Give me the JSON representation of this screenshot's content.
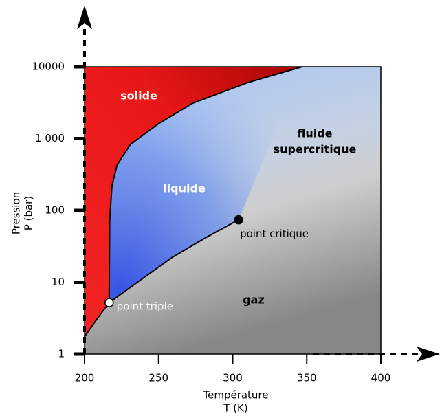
{
  "chart_data": {
    "type": "phase",
    "x_label": [
      "Température",
      "T (K)"
    ],
    "y_label": [
      "Pression",
      "P (bar)"
    ],
    "xlim": [
      200,
      400
    ],
    "xticks": [
      200,
      250,
      300,
      350,
      400
    ],
    "ylim": [
      1,
      10000
    ],
    "log_y": true,
    "yticks": [
      1,
      10,
      100,
      {
        "value": 1000,
        "label": "1 000"
      },
      10000
    ],
    "regions": [
      {
        "label": [
          "solide"
        ],
        "color": "#ffffff"
      },
      {
        "label": [
          "liquide"
        ],
        "color": "#ffffff"
      },
      {
        "label": [
          "fluide",
          "supercritique"
        ],
        "color": "#000000"
      },
      {
        "label": [
          "gaz"
        ],
        "color": "#000000"
      }
    ],
    "curves": [
      {
        "T": [
          200,
          207,
          216.6
        ],
        "P": [
          1.74,
          2.8,
          5.2
        ]
      },
      {
        "T": [
          216.6,
          216.8,
          217,
          218.5,
          222,
          231,
          249.7,
          272.9,
          310,
          347
        ],
        "P": [
          5.2,
          20,
          73,
          220,
          430,
          830,
          1600,
          3100,
          6000,
          10000
        ]
      },
      {
        "T": [
          216.6,
          235.7,
          258.9,
          282,
          304
        ],
        "P": [
          5.2,
          10,
          22,
          42,
          74
        ]
      }
    ],
    "points": [
      {
        "label": "point triple",
        "T": 216.6,
        "P": 5.2,
        "color": "#ffffff"
      },
      {
        "label": "point critique",
        "T": 304,
        "P": 74,
        "color": "#000000"
      }
    ]
  }
}
